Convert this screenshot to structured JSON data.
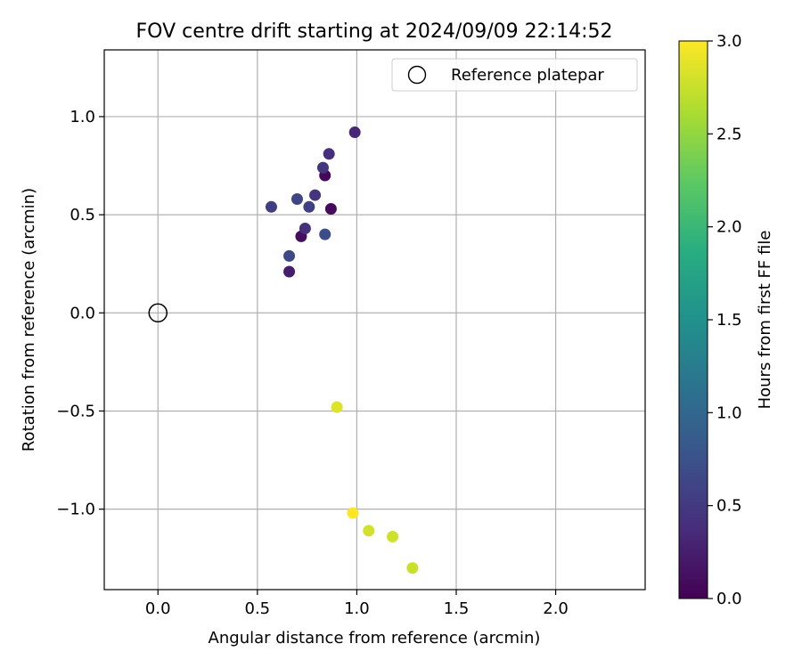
{
  "chart_data": {
    "type": "scatter",
    "title": "FOV centre drift starting at 2024/09/09 22:14:52",
    "xlabel": "Angular distance from reference (arcmin)",
    "ylabel": "Rotation from reference (arcmin)",
    "xlim": [
      -0.27,
      2.45
    ],
    "ylim": [
      -1.41,
      1.34
    ],
    "xticks": [
      0.0,
      0.5,
      1.0,
      1.5,
      2.0
    ],
    "xtick_labels": [
      "0.0",
      "0.5",
      "1.0",
      "1.5",
      "2.0"
    ],
    "yticks": [
      -1.0,
      -0.5,
      0.0,
      0.5,
      1.0
    ],
    "ytick_labels": [
      "−1.0",
      "−0.5",
      "0.0",
      "0.5",
      "1.0"
    ],
    "grid": true,
    "legend": {
      "placement": "top-right",
      "entries": [
        "Reference platepar"
      ]
    },
    "reference_point": {
      "x": 0.0,
      "y": 0.0
    },
    "colorbar": {
      "label": "Hours from first FF file",
      "range": [
        0.0,
        3.0
      ],
      "ticks": [
        0.0,
        0.5,
        1.0,
        1.5,
        2.0,
        2.5,
        3.0
      ],
      "tick_labels": [
        "0.0",
        "0.5",
        "1.0",
        "1.5",
        "2.0",
        "2.5",
        "3.0"
      ],
      "colormap": "viridis"
    },
    "points": [
      {
        "x": 0.84,
        "y": 0.7,
        "hours": 0.05
      },
      {
        "x": 0.87,
        "y": 0.53,
        "hours": 0.08
      },
      {
        "x": 0.72,
        "y": 0.39,
        "hours": 0.12
      },
      {
        "x": 0.66,
        "y": 0.21,
        "hours": 0.25
      },
      {
        "x": 0.99,
        "y": 0.92,
        "hours": 0.33
      },
      {
        "x": 0.86,
        "y": 0.81,
        "hours": 0.4
      },
      {
        "x": 0.74,
        "y": 0.43,
        "hours": 0.42
      },
      {
        "x": 0.79,
        "y": 0.6,
        "hours": 0.45
      },
      {
        "x": 0.83,
        "y": 0.74,
        "hours": 0.48
      },
      {
        "x": 0.57,
        "y": 0.54,
        "hours": 0.55
      },
      {
        "x": 0.76,
        "y": 0.54,
        "hours": 0.58
      },
      {
        "x": 0.7,
        "y": 0.58,
        "hours": 0.62
      },
      {
        "x": 0.66,
        "y": 0.29,
        "hours": 0.65
      },
      {
        "x": 0.84,
        "y": 0.4,
        "hours": 0.7
      },
      {
        "x": 0.9,
        "y": -0.48,
        "hours": 2.85
      },
      {
        "x": 1.06,
        "y": -1.11,
        "hours": 2.8
      },
      {
        "x": 1.18,
        "y": -1.14,
        "hours": 2.78
      },
      {
        "x": 1.28,
        "y": -1.3,
        "hours": 2.75
      },
      {
        "x": 0.98,
        "y": -1.02,
        "hours": 3.0
      }
    ]
  }
}
